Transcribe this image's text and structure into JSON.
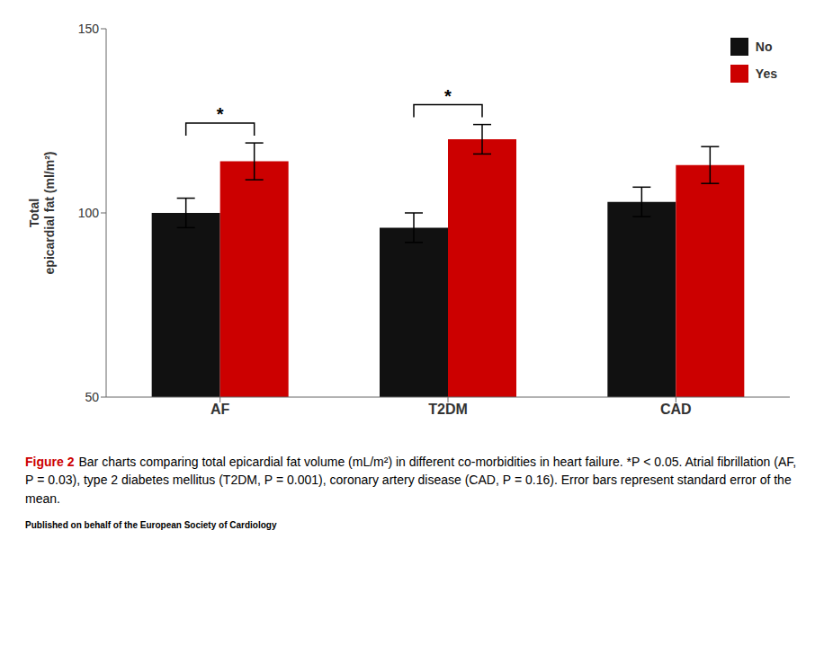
{
  "chart_data": {
    "type": "bar",
    "categories": [
      "AF",
      "T2DM",
      "CAD"
    ],
    "series": [
      {
        "name": "No",
        "color": "#111111",
        "values": [
          100,
          96,
          103
        ],
        "errors": [
          4,
          4,
          4
        ]
      },
      {
        "name": "Yes",
        "color": "#cc0000",
        "values": [
          114,
          120,
          113
        ],
        "errors": [
          5,
          4,
          5
        ]
      }
    ],
    "ylabel": "Total\nepicardial fat (ml/m²)",
    "ylim": [
      50,
      150
    ],
    "yticks": [
      50,
      100,
      150
    ],
    "grid": false,
    "legend": "upper right",
    "annotations": [
      {
        "category": "AF",
        "text": "*"
      },
      {
        "category": "T2DM",
        "text": "*"
      }
    ],
    "caption": {
      "label": "Figure 2",
      "color": "#cc0000",
      "text": "Bar charts comparing total epicardial fat volume (mL/m²) in different co-morbidities in heart failure. *P < 0.05. Atrial fibrillation (AF, P = 0.03), type 2 diabetes mellitus (T2DM, P = 0.001), coronary artery disease (CAD, P = 0.16). Error bars represent standard error of the mean."
    },
    "footer": "Published on behalf of the European Society of Cardiology"
  }
}
